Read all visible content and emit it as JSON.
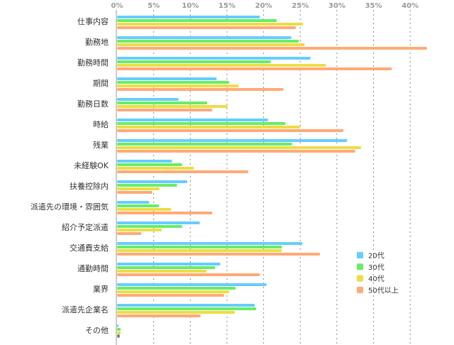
{
  "chart_data": {
    "type": "bar",
    "orientation": "horizontal",
    "title": "",
    "xlabel": "",
    "ylabel": "",
    "xlim": [
      0,
      42.5
    ],
    "x_ticks": [
      "0%",
      "5%",
      "10%",
      "15%",
      "20%",
      "25%",
      "30%",
      "35%",
      "40%"
    ],
    "grid": true,
    "legend_position": "bottom-right",
    "categories": [
      "仕事内容",
      "勤務地",
      "勤務時間",
      "期間",
      "勤務日数",
      "時給",
      "残業",
      "未経験OK",
      "扶養控除内",
      "派遣先の環境・雰囲気",
      "紹介予定派遣",
      "交通費支給",
      "通勤時間",
      "業界",
      "派遣先企業名",
      "その他"
    ],
    "series": [
      {
        "name": "20代",
        "color": "#66ccff",
        "values": [
          19.5,
          23.8,
          26.4,
          13.6,
          8.4,
          20.6,
          31.4,
          7.5,
          9.6,
          4.4,
          11.3,
          25.3,
          14.1,
          20.4,
          18.8,
          0.2
        ]
      },
      {
        "name": "30代",
        "color": "#66ee66",
        "values": [
          21.8,
          24.8,
          21.0,
          15.3,
          12.3,
          23.0,
          23.9,
          8.9,
          8.2,
          5.7,
          8.9,
          22.5,
          13.4,
          16.2,
          19.0,
          0.5
        ]
      },
      {
        "name": "40代",
        "color": "#eedd44",
        "values": [
          25.4,
          25.6,
          28.5,
          16.6,
          15.1,
          25.0,
          33.3,
          10.5,
          5.8,
          7.4,
          6.1,
          22.5,
          12.2,
          15.3,
          16.1,
          0.5
        ]
      },
      {
        "name": "50代以上",
        "color": "#ffaa77",
        "values": [
          24.4,
          42.3,
          37.5,
          22.7,
          13.0,
          30.9,
          32.5,
          17.9,
          4.8,
          13.0,
          3.3,
          27.7,
          19.5,
          14.6,
          11.4,
          0
        ]
      }
    ]
  }
}
